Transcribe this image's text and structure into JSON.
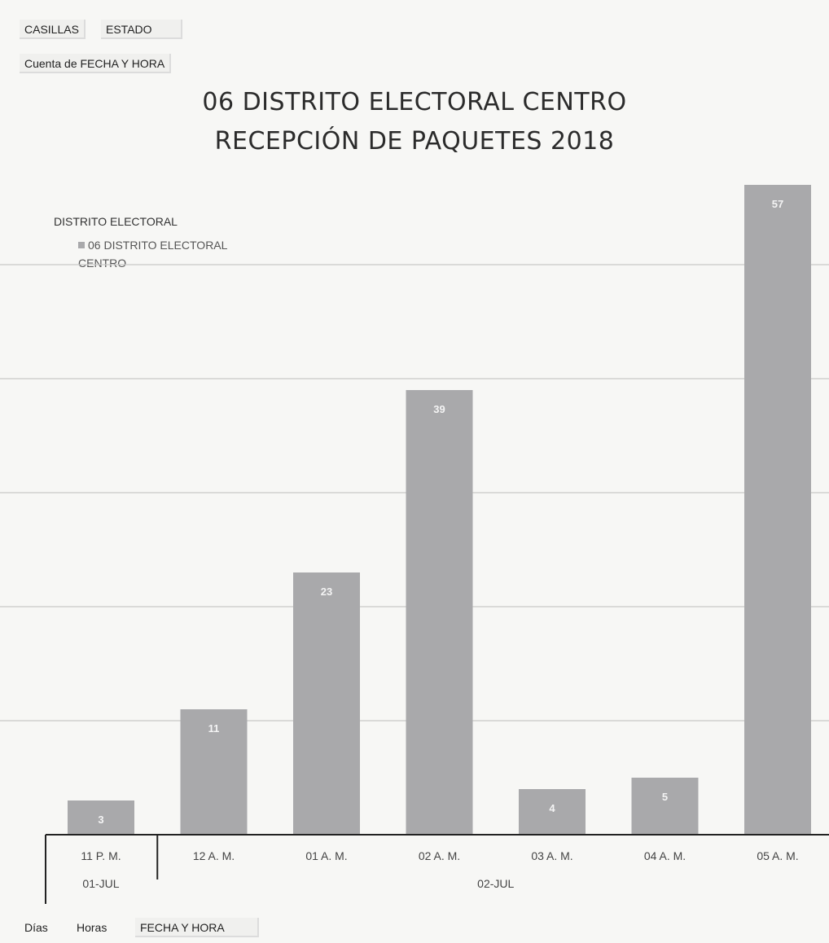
{
  "filters": {
    "casillas": "CASILLAS",
    "estado": "ESTADO",
    "value_field": "Cuenta de FECHA Y HORA"
  },
  "axis_fields": {
    "dias": "Días",
    "horas": "Horas",
    "fecha_hora": "FECHA Y HORA"
  },
  "colors": {
    "bar": "#a9a9ab",
    "gridline": "#c8c8c8",
    "axis": "#222222",
    "label": "#f4f4f4"
  },
  "chart_data": {
    "type": "bar",
    "title": "06 DISTRITO ELECTORAL CENTRO",
    "subtitle": "RECEPCIÓN DE PAQUETES 2018",
    "legend_title": "DISTRITO ELECTORAL",
    "legend_position": "top-left",
    "categories": [
      "11 P. M.",
      "12 A. M.",
      "01 A. M.",
      "02 A. M.",
      "03 A. M.",
      "04 A. M.",
      "05 A. M."
    ],
    "groups": [
      {
        "label": "01-JUL",
        "span": 1
      },
      {
        "label": "02-JUL",
        "span": 6
      }
    ],
    "series": [
      {
        "name": "06 DISTRITO ELECTORAL CENTRO",
        "values": [
          3,
          11,
          23,
          39,
          4,
          5,
          57
        ]
      }
    ],
    "ylim": [
      0,
      60
    ],
    "grid": true,
    "gridlines": [
      10,
      20,
      30,
      40,
      50
    ]
  }
}
